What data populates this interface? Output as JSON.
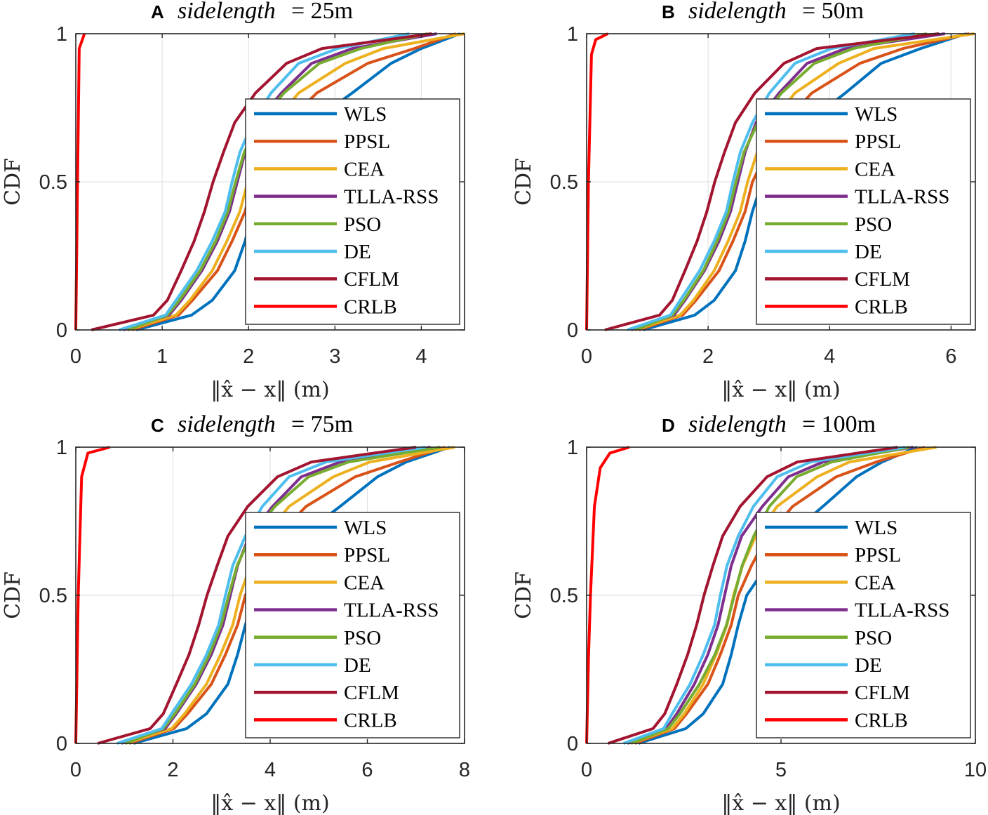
{
  "chart_data": {
    "type": "line",
    "cdf_levels": [
      0,
      0.05,
      0.1,
      0.2,
      0.3,
      0.4,
      0.5,
      0.6,
      0.7,
      0.8,
      0.9,
      0.95,
      1
    ],
    "colors": {
      "WLS": "#0072BD",
      "PPSL": "#D95319",
      "CEA": "#EDB120",
      "TLLA-RSS": "#7E2F8E",
      "PSO": "#77AC30",
      "DE": "#4DBEEE",
      "CFLM": "#A2142F",
      "CRLB": "#FF0000"
    },
    "legend_placement": "lower-right",
    "grid": true,
    "panels": [
      {
        "label": "A",
        "title_var": "sidelength",
        "title_eq": "= 25m",
        "xlabel": "‖x̂ − x‖ (m)",
        "ylabel": "CDF",
        "xlim": [
          0,
          4.5
        ],
        "ylim": [
          0,
          1
        ],
        "xticks": [
          0,
          1,
          2,
          3,
          4
        ],
        "yticks": [
          0,
          0.5,
          1
        ],
        "ytick_labels": [
          "0",
          "0.5",
          "1"
        ],
        "series": [
          {
            "name": "WLS",
            "x": [
              0.7,
              1.34,
              1.58,
              1.84,
              1.96,
              2.05,
              2.17,
              2.44,
              2.73,
              3.2,
              3.65,
              4.0,
              4.45
            ]
          },
          {
            "name": "PPSL",
            "x": [
              0.65,
              1.19,
              1.35,
              1.64,
              1.81,
              1.96,
              2.05,
              2.23,
              2.44,
              2.79,
              3.38,
              3.92,
              4.4
            ]
          },
          {
            "name": "CEA",
            "x": [
              0.6,
              1.16,
              1.32,
              1.58,
              1.75,
              1.9,
              1.99,
              2.11,
              2.29,
              2.58,
              3.12,
              3.56,
              4.5
            ]
          },
          {
            "name": "TLLA-RSS",
            "x": [
              0.55,
              1.08,
              1.22,
              1.46,
              1.64,
              1.78,
              1.87,
              1.96,
              2.1,
              2.38,
              2.73,
              3.2,
              4.18
            ]
          },
          {
            "name": "PSO",
            "x": [
              0.6,
              1.06,
              1.2,
              1.44,
              1.62,
              1.76,
              1.85,
              1.95,
              2.12,
              2.41,
              2.82,
              3.3,
              4.07
            ]
          },
          {
            "name": "DE",
            "x": [
              0.5,
              1.04,
              1.16,
              1.4,
              1.58,
              1.73,
              1.81,
              1.9,
              2.05,
              2.26,
              2.58,
              3.03,
              3.86
            ]
          },
          {
            "name": "CFLM",
            "x": [
              0.18,
              0.9,
              1.06,
              1.22,
              1.37,
              1.49,
              1.59,
              1.71,
              1.84,
              2.08,
              2.44,
              2.85,
              4.12
            ]
          },
          {
            "name": "CRLB",
            "points": [
              [
                0,
                0
              ],
              [
                0.02,
                0.5
              ],
              [
                0.04,
                0.95
              ],
              [
                0.1,
                1
              ]
            ]
          }
        ]
      },
      {
        "label": "B",
        "title_var": "sidelength",
        "title_eq": "= 50m",
        "xlabel": "‖x̂ − x‖ (m)",
        "ylabel": "CDF",
        "xlim": [
          0,
          6.4
        ],
        "ylim": [
          0,
          1
        ],
        "xticks": [
          0,
          2,
          4,
          6
        ],
        "yticks": [
          0,
          0.5,
          1
        ],
        "ytick_labels": [
          "0",
          "0.5",
          "1"
        ],
        "series": [
          {
            "name": "WLS",
            "x": [
              0.93,
              1.78,
              2.1,
              2.45,
              2.61,
              2.73,
              2.89,
              3.25,
              3.63,
              4.26,
              4.85,
              5.5,
              6.25
            ]
          },
          {
            "name": "PPSL",
            "x": [
              0.86,
              1.58,
              1.8,
              2.18,
              2.41,
              2.61,
              2.73,
              2.97,
              3.25,
              3.71,
              4.5,
              5.21,
              6.3
            ]
          },
          {
            "name": "CEA",
            "x": [
              0.8,
              1.54,
              1.76,
              2.1,
              2.33,
              2.53,
              2.65,
              2.81,
              3.05,
              3.43,
              4.15,
              4.73,
              6.38
            ]
          },
          {
            "name": "TLLA-RSS",
            "x": [
              0.73,
              1.44,
              1.62,
              1.94,
              2.18,
              2.37,
              2.49,
              2.61,
              2.79,
              3.17,
              3.63,
              4.26,
              5.9
            ]
          },
          {
            "name": "PSO",
            "x": [
              0.8,
              1.41,
              1.6,
              1.92,
              2.15,
              2.34,
              2.46,
              2.59,
              2.82,
              3.21,
              3.75,
              4.39,
              5.6
            ]
          },
          {
            "name": "DE",
            "x": [
              0.67,
              1.38,
              1.54,
              1.86,
              2.1,
              2.3,
              2.41,
              2.53,
              2.73,
              3.01,
              3.43,
              4.03,
              5.4
            ]
          },
          {
            "name": "CFLM",
            "x": [
              0.3,
              1.2,
              1.41,
              1.62,
              1.82,
              1.98,
              2.11,
              2.27,
              2.45,
              2.77,
              3.25,
              3.79,
              5.8
            ]
          },
          {
            "name": "CRLB",
            "points": [
              [
                0,
                0
              ],
              [
                0.03,
                0.5
              ],
              [
                0.08,
                0.93
              ],
              [
                0.15,
                0.98
              ],
              [
                0.35,
                1
              ]
            ]
          }
        ]
      },
      {
        "label": "C",
        "title_var": "sidelength",
        "title_eq": "= 75m",
        "xlabel": "‖x̂ − x‖ (m)",
        "ylabel": "CDF",
        "xlim": [
          0,
          8
        ],
        "ylim": [
          0,
          1
        ],
        "xticks": [
          0,
          2,
          4,
          6,
          8
        ],
        "yticks": [
          0,
          0.5,
          1
        ],
        "ytick_labels": [
          "0",
          "0.5",
          "1"
        ],
        "series": [
          {
            "name": "WLS",
            "x": [
              1.19,
              2.28,
              2.69,
              3.13,
              3.33,
              3.49,
              3.69,
              4.15,
              4.64,
              5.44,
              6.21,
              6.8,
              7.7
            ]
          },
          {
            "name": "PPSL",
            "x": [
              1.1,
              2.02,
              2.3,
              2.79,
              3.08,
              3.33,
              3.49,
              3.79,
              4.15,
              4.74,
              5.75,
              6.66,
              7.6
            ]
          },
          {
            "name": "CEA",
            "x": [
              1.02,
              1.97,
              2.24,
              2.69,
              2.98,
              3.23,
              3.38,
              3.59,
              3.89,
              4.39,
              5.3,
              6.05,
              7.8
            ]
          },
          {
            "name": "TLLA-RSS",
            "x": [
              0.94,
              1.84,
              2.07,
              2.48,
              2.79,
              3.03,
              3.18,
              3.33,
              3.57,
              4.05,
              4.64,
              5.44,
              7.3
            ]
          },
          {
            "name": "PSO",
            "x": [
              1.02,
              1.8,
              2.04,
              2.45,
              2.75,
              2.99,
              3.15,
              3.32,
              3.6,
              4.1,
              4.79,
              5.61,
              7.5
            ]
          },
          {
            "name": "DE",
            "x": [
              0.85,
              1.77,
              1.97,
              2.38,
              2.69,
              2.94,
              3.08,
              3.23,
              3.49,
              3.84,
              4.39,
              5.15,
              7.2
            ]
          },
          {
            "name": "CFLM",
            "x": [
              0.45,
              1.53,
              1.8,
              2.07,
              2.33,
              2.53,
              2.7,
              2.91,
              3.13,
              3.54,
              4.15,
              4.85,
              7.0
            ]
          },
          {
            "name": "CRLB",
            "points": [
              [
                0,
                0
              ],
              [
                0.05,
                0.5
              ],
              [
                0.12,
                0.9
              ],
              [
                0.25,
                0.98
              ],
              [
                0.7,
                1
              ]
            ]
          }
        ]
      },
      {
        "label": "D",
        "title_var": "sidelength",
        "title_eq": "= 100m",
        "xlabel": "‖x̂ − x‖ (m)",
        "ylabel": "CDF",
        "xlim": [
          0,
          10
        ],
        "ylim": [
          0,
          1
        ],
        "xticks": [
          0,
          5,
          10
        ],
        "yticks": [
          0,
          0.5,
          1
        ],
        "ytick_labels": [
          "0",
          "0.5",
          "1"
        ],
        "series": [
          {
            "name": "WLS",
            "x": [
              1.33,
              2.55,
              3.0,
              3.5,
              3.72,
              3.9,
              4.12,
              4.64,
              5.19,
              6.08,
              6.94,
              7.6,
              8.5
            ]
          },
          {
            "name": "PPSL",
            "x": [
              1.24,
              2.26,
              2.57,
              3.12,
              3.44,
              3.72,
              3.9,
              4.24,
              4.64,
              5.3,
              6.42,
              7.45,
              8.7
            ]
          },
          {
            "name": "CEA",
            "x": [
              1.14,
              2.2,
              2.51,
              3.0,
              3.33,
              3.61,
              3.78,
              4.01,
              4.35,
              4.9,
              5.93,
              6.76,
              9.0
            ]
          },
          {
            "name": "TLLA-RSS",
            "x": [
              1.05,
              2.05,
              2.32,
              2.77,
              3.12,
              3.38,
              3.55,
              3.72,
              3.99,
              4.52,
              5.19,
              6.08,
              8.4
            ]
          },
          {
            "name": "PSO",
            "x": [
              1.14,
              2.1,
              2.4,
              2.9,
              3.3,
              3.6,
              3.8,
              4.0,
              4.3,
              4.7,
              5.4,
              6.3,
              8.3
            ]
          },
          {
            "name": "DE",
            "x": [
              0.95,
              1.98,
              2.2,
              2.66,
              3.0,
              3.29,
              3.44,
              3.61,
              3.9,
              4.29,
              4.9,
              5.76,
              8.2
            ]
          },
          {
            "name": "CFLM",
            "x": [
              0.55,
              1.71,
              2.01,
              2.32,
              2.6,
              2.83,
              3.02,
              3.25,
              3.5,
              3.95,
              4.64,
              5.42,
              8.0
            ]
          },
          {
            "name": "CRLB",
            "points": [
              [
                0,
                0
              ],
              [
                0.05,
                0.3
              ],
              [
                0.1,
                0.5
              ],
              [
                0.2,
                0.8
              ],
              [
                0.35,
                0.93
              ],
              [
                0.6,
                0.98
              ],
              [
                1.1,
                1
              ]
            ]
          }
        ]
      }
    ]
  }
}
